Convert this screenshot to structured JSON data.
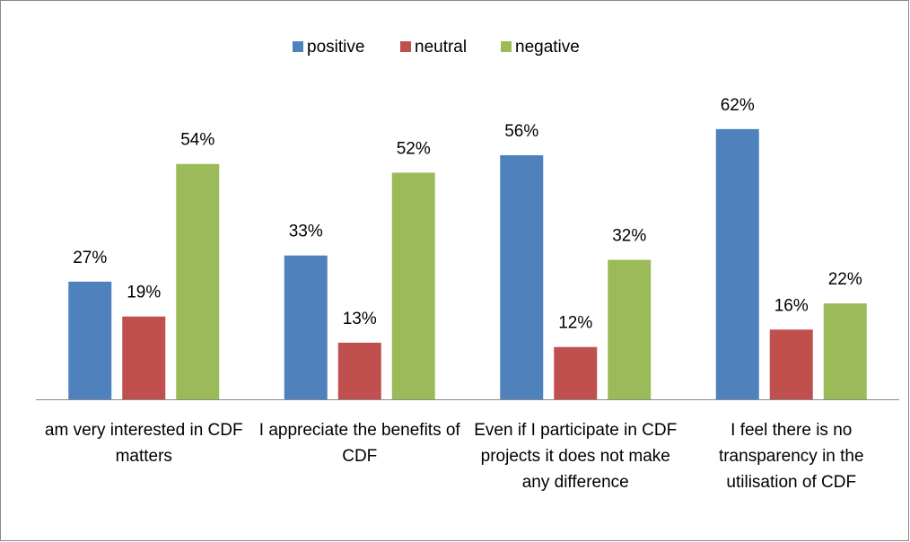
{
  "chart_data": {
    "type": "bar",
    "categories": [
      "am very interested in CDF matters",
      "I  appreciate the benefits of CDF",
      "Even if I participate in CDF projects it does not make any difference",
      "I feel there is no transparency in the utilisation of CDF"
    ],
    "series": [
      {
        "name": "positive",
        "color": "#4f81bd",
        "values": [
          27,
          33,
          56,
          62
        ],
        "value_labels": [
          "27%",
          "33%",
          "56%",
          "62%"
        ]
      },
      {
        "name": "neutral",
        "color": "#c0504d",
        "values": [
          19,
          13,
          12,
          16
        ],
        "value_labels": [
          "19%",
          "13%",
          "12%",
          "16%"
        ]
      },
      {
        "name": "negative",
        "color": "#9bbb59",
        "values": [
          54,
          52,
          32,
          22
        ],
        "value_labels": [
          "54%",
          "52%",
          "32%",
          "22%"
        ]
      }
    ],
    "ylim": [
      0,
      70
    ],
    "legend": "top"
  }
}
